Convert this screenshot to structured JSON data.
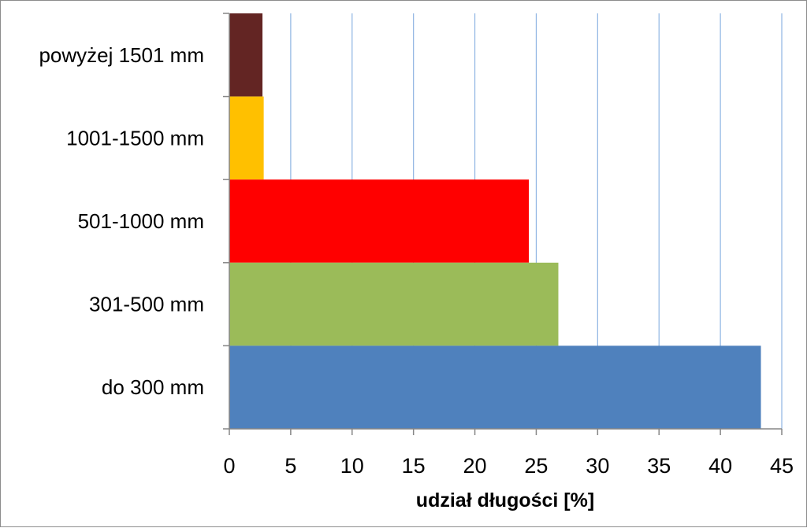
{
  "chart_data": {
    "type": "bar",
    "orientation": "horizontal",
    "categories": [
      "powyżej 1501 mm",
      "1001-1500 mm",
      "501-1000 mm",
      "301-500 mm",
      "do 300 mm"
    ],
    "values": [
      2.7,
      2.8,
      24.4,
      26.8,
      43.3
    ],
    "colors": [
      "#632523",
      "#FFC000",
      "#FF0000",
      "#9BBB59",
      "#4F81BD"
    ],
    "xlim": [
      0,
      45
    ],
    "xticks": [
      0,
      5,
      10,
      15,
      20,
      25,
      30,
      35,
      40,
      45
    ],
    "xlabel": "udział długości [%]",
    "ylabel": "",
    "title": "",
    "grid": "vertical",
    "gridline_color": "#8EB4E3",
    "legend": "none"
  }
}
